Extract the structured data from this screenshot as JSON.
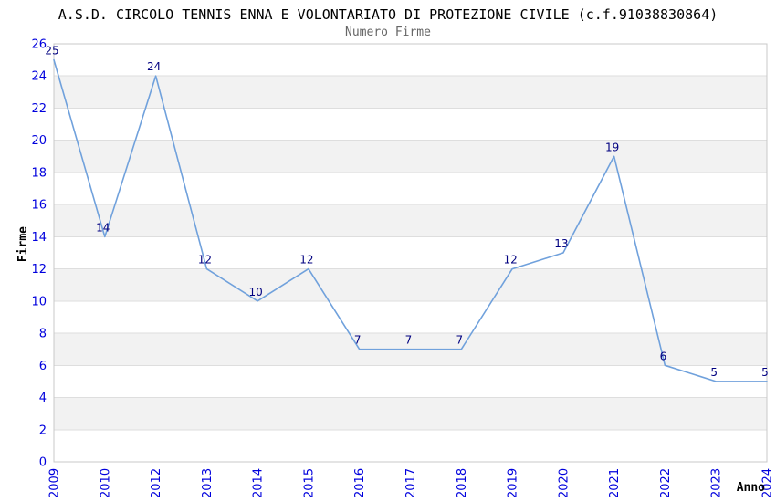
{
  "chart_data": {
    "type": "line",
    "title": "A.S.D. CIRCOLO TENNIS ENNA E VOLONTARIATO DI PROTEZIONE CIVILE (c.f.91038830864)",
    "subtitle": "Numero Firme",
    "xlabel": "Anno",
    "ylabel": "Firme",
    "categories": [
      "2009",
      "2010",
      "2012",
      "2013",
      "2014",
      "2015",
      "2016",
      "2017",
      "2018",
      "2019",
      "2020",
      "2021",
      "2022",
      "2023",
      "2024"
    ],
    "values": [
      25,
      14,
      24,
      12,
      10,
      12,
      7,
      7,
      7,
      12,
      13,
      19,
      6,
      5,
      5
    ],
    "ylim": [
      0,
      26
    ],
    "y_tick_step": 2,
    "grid": true,
    "legend": null,
    "band_intervals": [
      [
        2,
        4
      ],
      [
        6,
        8
      ],
      [
        10,
        12
      ],
      [
        14,
        16
      ],
      [
        18,
        20
      ],
      [
        22,
        24
      ]
    ],
    "colors": {
      "line": "#70A1DC",
      "tick_labels": "#0000DD",
      "value_labels": "#000080",
      "band": "#F2F2F2",
      "grid": "#DEDEDE",
      "border": "#C8C8C8",
      "title": "#000000",
      "subtitle": "#666666"
    }
  }
}
